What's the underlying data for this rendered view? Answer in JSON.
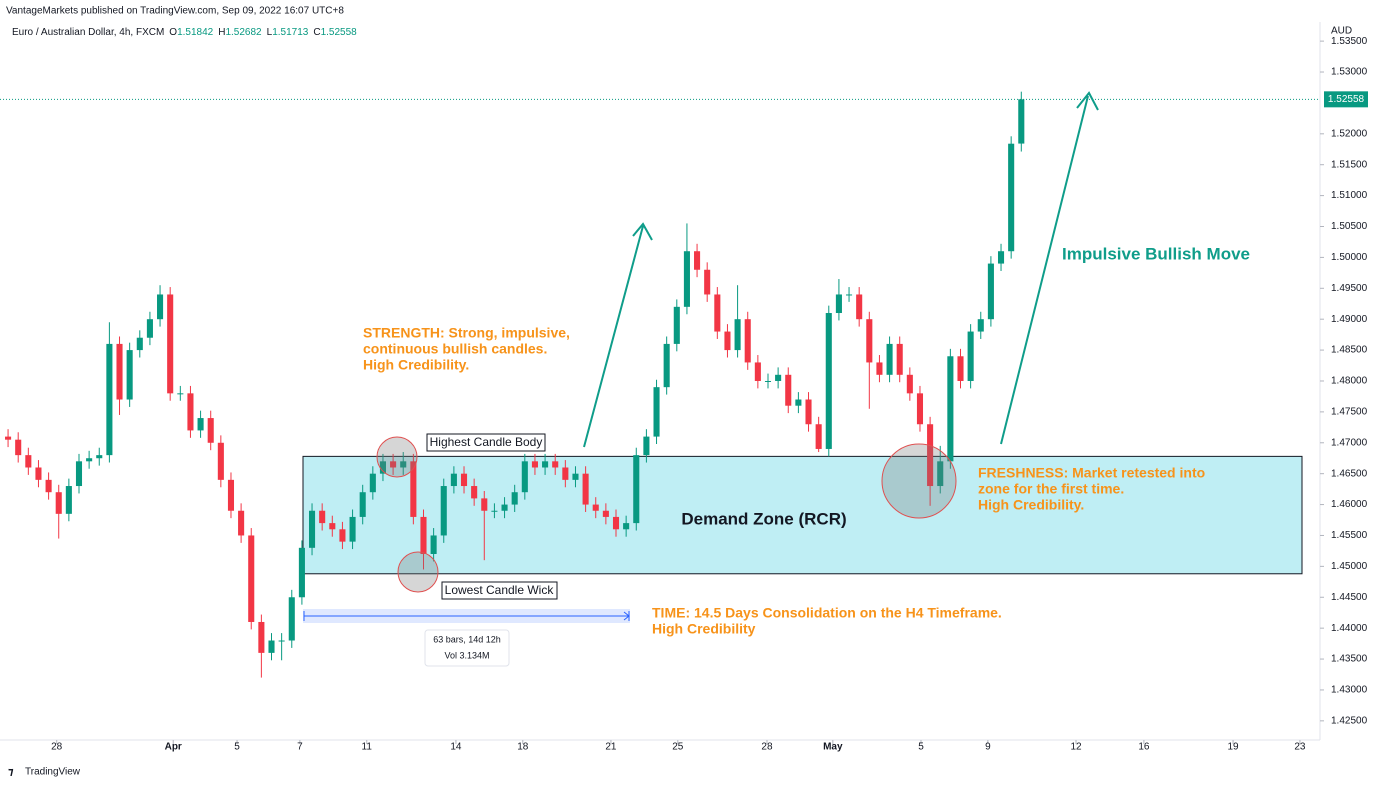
{
  "chart_data": {
    "type": "candlestick",
    "header": "VantageMarkets published on TradingView.com, Sep 09, 2022 16:07 UTC+8",
    "title": "Euro / Australian Dollar, 4h, FXCM",
    "ohlc_display": {
      "o_label": "O",
      "o": "1.51842",
      "h_label": "H",
      "h": "1.52682",
      "l_label": "L",
      "l": "1.51713",
      "c_label": "C",
      "c": "1.52558"
    },
    "currency": "AUD",
    "last_price": 1.52558,
    "last_price_label": "1.52558",
    "up_color": "#089981",
    "down_color": "#f23645",
    "xlim": [
      -0.5,
      128
    ],
    "xticks": [
      {
        "value": 4.8,
        "label": "28"
      },
      {
        "value": 16.3,
        "label": "Apr"
      },
      {
        "value": 22.6,
        "label": "5"
      },
      {
        "value": 28.8,
        "label": "7"
      },
      {
        "value": 35.4,
        "label": "11"
      },
      {
        "value": 44.2,
        "label": "14"
      },
      {
        "value": 50.8,
        "label": "18"
      },
      {
        "value": 59.5,
        "label": "21"
      },
      {
        "value": 66.1,
        "label": "25"
      },
      {
        "value": 74.9,
        "label": "28"
      },
      {
        "value": 81.4,
        "label": "May"
      },
      {
        "value": 90.1,
        "label": "5"
      },
      {
        "value": 96.7,
        "label": "9"
      },
      {
        "value": 105.4,
        "label": "12"
      },
      {
        "value": 112.1,
        "label": "16"
      },
      {
        "value": 120.9,
        "label": "19"
      },
      {
        "value": 127.5,
        "label": "23"
      }
    ],
    "ylim": [
      1.4219,
      1.5368
    ],
    "yticks": [
      {
        "value": 1.425,
        "label": "1.42500"
      },
      {
        "value": 1.43,
        "label": "1.43000"
      },
      {
        "value": 1.435,
        "label": "1.43500"
      },
      {
        "value": 1.44,
        "label": "1.44000"
      },
      {
        "value": 1.445,
        "label": "1.44500"
      },
      {
        "value": 1.45,
        "label": "1.45000"
      },
      {
        "value": 1.455,
        "label": "1.45500"
      },
      {
        "value": 1.46,
        "label": "1.46000"
      },
      {
        "value": 1.465,
        "label": "1.46500"
      },
      {
        "value": 1.47,
        "label": "1.47000"
      },
      {
        "value": 1.475,
        "label": "1.47500"
      },
      {
        "value": 1.48,
        "label": "1.48000"
      },
      {
        "value": 1.485,
        "label": "1.48500"
      },
      {
        "value": 1.49,
        "label": "1.49000"
      },
      {
        "value": 1.495,
        "label": "1.49500"
      },
      {
        "value": 1.5,
        "label": "1.50000"
      },
      {
        "value": 1.505,
        "label": "1.50500"
      },
      {
        "value": 1.51,
        "label": "1.51000"
      },
      {
        "value": 1.515,
        "label": "1.51500"
      },
      {
        "value": 1.52,
        "label": "1.52000"
      },
      {
        "value": 1.53,
        "label": "1.53000"
      },
      {
        "value": 1.535,
        "label": "1.53500"
      }
    ],
    "open": [
      1.471,
      1.4705,
      1.468,
      1.466,
      1.464,
      1.462,
      1.4585,
      1.463,
      1.467,
      1.4675,
      1.468,
      1.486,
      1.477,
      1.485,
      1.487,
      1.49,
      1.494,
      1.478,
      1.478,
      1.472,
      1.474,
      1.47,
      1.464,
      1.459,
      1.455,
      1.441,
      1.436,
      1.438,
      1.438,
      1.445,
      1.453,
      1.459,
      1.457,
      1.456,
      1.454,
      1.458,
      1.462,
      1.465,
      1.467,
      1.466,
      1.467,
      1.458,
      1.452,
      1.455,
      1.463,
      1.465,
      1.463,
      1.461,
      1.459,
      1.459,
      1.46,
      1.462,
      1.467,
      1.466,
      1.467,
      1.466,
      1.464,
      1.465,
      1.46,
      1.459,
      1.458,
      1.456,
      1.457,
      1.468,
      1.471,
      1.479,
      1.486,
      1.492,
      1.501,
      1.498,
      1.494,
      1.488,
      1.485,
      1.49,
      1.483,
      1.48,
      1.48,
      1.481,
      1.476,
      1.477,
      1.473,
      1.469,
      1.491,
      1.494,
      1.494,
      1.49,
      1.483,
      1.481,
      1.486,
      1.481,
      1.478,
      1.473,
      1.463,
      1.467,
      1.484,
      1.48,
      1.488,
      1.49,
      1.499,
      1.501,
      1.51842
    ],
    "high": [
      1.4722,
      1.4717,
      1.4692,
      1.4672,
      1.4652,
      1.4632,
      1.4642,
      1.4682,
      1.4687,
      1.4692,
      1.4895,
      1.4872,
      1.4862,
      1.4882,
      1.4912,
      1.4955,
      1.4952,
      1.4792,
      1.4792,
      1.4752,
      1.4752,
      1.4712,
      1.4652,
      1.4602,
      1.4562,
      1.4422,
      1.4392,
      1.4392,
      1.4462,
      1.4542,
      1.4602,
      1.4602,
      1.4582,
      1.4572,
      1.4592,
      1.4632,
      1.4662,
      1.4682,
      1.4682,
      1.4685,
      1.4682,
      1.4592,
      1.4562,
      1.4642,
      1.4662,
      1.4662,
      1.4642,
      1.4622,
      1.4602,
      1.4612,
      1.4632,
      1.4682,
      1.4682,
      1.4682,
      1.4682,
      1.4672,
      1.4662,
      1.4662,
      1.4612,
      1.4602,
      1.4592,
      1.4582,
      1.4692,
      1.4722,
      1.4802,
      1.4872,
      1.4932,
      1.5055,
      1.5022,
      1.4992,
      1.4952,
      1.4892,
      1.4955,
      1.4912,
      1.4842,
      1.4812,
      1.4822,
      1.4822,
      1.4782,
      1.4782,
      1.4742,
      1.4922,
      1.4965,
      1.4952,
      1.4952,
      1.4912,
      1.4842,
      1.4872,
      1.4872,
      1.4822,
      1.4792,
      1.4742,
      1.4695,
      1.4852,
      1.4852,
      1.4892,
      1.4912,
      1.5002,
      1.5022,
      1.5196,
      1.52682
    ],
    "low": [
      1.4693,
      1.4668,
      1.4648,
      1.4628,
      1.4608,
      1.4545,
      1.4573,
      1.4618,
      1.4658,
      1.4663,
      1.4668,
      1.4745,
      1.4758,
      1.4838,
      1.4858,
      1.4888,
      1.4768,
      1.4768,
      1.4708,
      1.4708,
      1.4688,
      1.4628,
      1.4578,
      1.4538,
      1.4398,
      1.432,
      1.4348,
      1.4348,
      1.4368,
      1.4438,
      1.4518,
      1.4558,
      1.4548,
      1.4528,
      1.4528,
      1.4568,
      1.4608,
      1.4638,
      1.4648,
      1.4648,
      1.4568,
      1.4495,
      1.4508,
      1.4538,
      1.4618,
      1.4618,
      1.4598,
      1.451,
      1.4578,
      1.4578,
      1.4588,
      1.4608,
      1.4648,
      1.4648,
      1.4648,
      1.4628,
      1.4628,
      1.4588,
      1.4578,
      1.4568,
      1.4548,
      1.4548,
      1.4558,
      1.4668,
      1.4698,
      1.4778,
      1.4848,
      1.4908,
      1.4968,
      1.4928,
      1.4868,
      1.4838,
      1.4838,
      1.4818,
      1.4788,
      1.4788,
      1.4788,
      1.4748,
      1.4748,
      1.4718,
      1.4685,
      1.4678,
      1.4898,
      1.4928,
      1.4888,
      1.4755,
      1.4798,
      1.4798,
      1.4798,
      1.4768,
      1.4718,
      1.4598,
      1.4618,
      1.4658,
      1.4788,
      1.4788,
      1.4868,
      1.4888,
      1.4978,
      1.4998,
      1.51713
    ],
    "close": [
      1.4705,
      1.468,
      1.466,
      1.464,
      1.462,
      1.4585,
      1.463,
      1.467,
      1.4675,
      1.468,
      1.486,
      1.477,
      1.485,
      1.487,
      1.49,
      1.494,
      1.478,
      1.478,
      1.472,
      1.474,
      1.47,
      1.464,
      1.459,
      1.455,
      1.441,
      1.436,
      1.438,
      1.438,
      1.445,
      1.453,
      1.459,
      1.457,
      1.456,
      1.454,
      1.458,
      1.462,
      1.465,
      1.467,
      1.466,
      1.467,
      1.458,
      1.452,
      1.455,
      1.463,
      1.465,
      1.463,
      1.461,
      1.459,
      1.459,
      1.46,
      1.462,
      1.467,
      1.466,
      1.467,
      1.466,
      1.464,
      1.465,
      1.46,
      1.459,
      1.458,
      1.456,
      1.457,
      1.468,
      1.471,
      1.479,
      1.486,
      1.492,
      1.501,
      1.498,
      1.494,
      1.488,
      1.485,
      1.49,
      1.483,
      1.48,
      1.48,
      1.481,
      1.476,
      1.477,
      1.473,
      1.469,
      1.491,
      1.494,
      1.494,
      1.49,
      1.483,
      1.481,
      1.486,
      1.481,
      1.478,
      1.473,
      1.463,
      1.467,
      1.484,
      1.48,
      1.488,
      1.49,
      1.499,
      1.501,
      1.5184,
      1.52558
    ],
    "zone": {
      "label": "Demand Zone (RCR)",
      "top": 1.4678,
      "bottom": 1.4488
    },
    "annotations": {
      "highest": "Highest Candle Body",
      "lowest": "Lowest Candle Wick",
      "strength": [
        "STRENGTH: Strong, impulsive,",
        "continuous bullish candles.",
        "High Credibility."
      ],
      "freshness": [
        "FRESHNESS: Market retested into",
        "zone for the first time.",
        "High Credibility."
      ],
      "time": [
        "TIME: 14.5 Days Consolidation on the H4 Timeframe.",
        "High Credibility"
      ],
      "impulsive": "Impulsive Bullish Move",
      "measure_bars": "63 bars, 14d 12h",
      "measure_vol": "Vol 3.134M"
    },
    "footer": "TradingView"
  }
}
